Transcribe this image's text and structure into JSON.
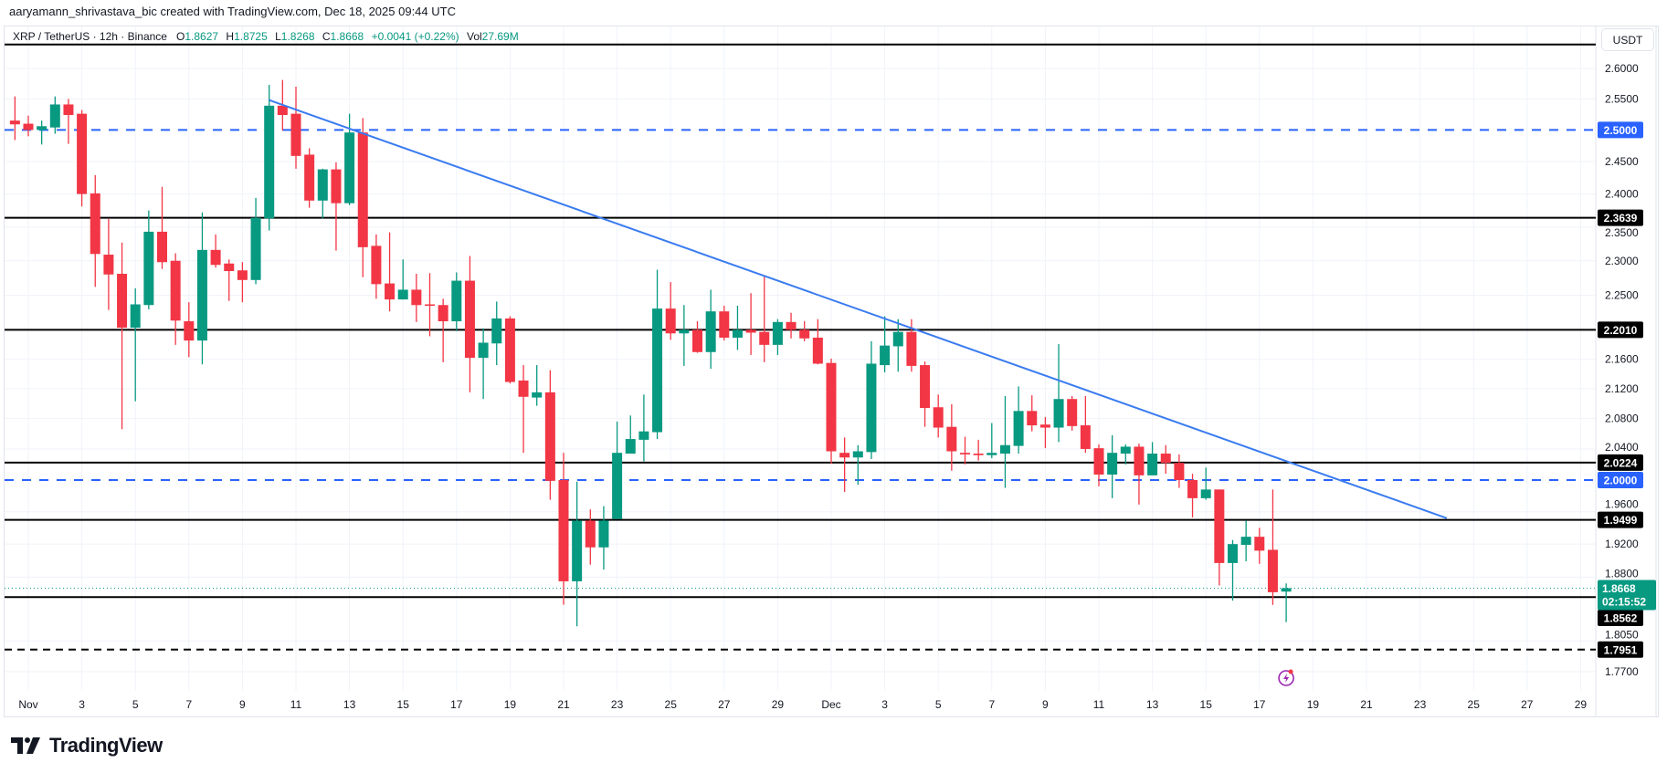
{
  "credit": "aaryamann_shrivastava_bic created with TradingView.com, Dec 18, 2025 09:44 UTC",
  "legend": {
    "symbol": "XRP / TetherUS · 12h · Binance",
    "o_label": "O",
    "o": "1.8627",
    "h_label": "H",
    "h": "1.8725",
    "l_label": "L",
    "l": "1.8268",
    "c_label": "C",
    "c": "1.8668",
    "change": "+0.0041 (+0.22%)",
    "vol_label": "Vol",
    "vol": "27.69M"
  },
  "currency_button": "USDT",
  "logo": "TradingView",
  "colors": {
    "up": "#089981",
    "down": "#F23645",
    "blue": "#2962FF",
    "trendline": "#3A7BF0",
    "level": "#000000"
  },
  "chart_data": {
    "type": "candlestick",
    "interval": "12h",
    "y_scale": "log",
    "ylim": [
      1.75,
      2.66
    ],
    "grid": true,
    "y_ticks": [
      "2.6000",
      "2.5500",
      "2.4500",
      "2.4000",
      "2.3500",
      "2.3000",
      "2.2500",
      "2.1600",
      "2.1200",
      "2.0800",
      "2.0400",
      "1.9600",
      "1.9200",
      "1.8800",
      "1.8050",
      "1.7700"
    ],
    "x_ticks": [
      {
        "label": "Nov",
        "date": "2025-11-01"
      },
      {
        "label": "3",
        "date": "2025-11-03"
      },
      {
        "label": "5",
        "date": "2025-11-05"
      },
      {
        "label": "7",
        "date": "2025-11-07"
      },
      {
        "label": "9",
        "date": "2025-11-09"
      },
      {
        "label": "11",
        "date": "2025-11-11"
      },
      {
        "label": "13",
        "date": "2025-11-13"
      },
      {
        "label": "15",
        "date": "2025-11-15"
      },
      {
        "label": "17",
        "date": "2025-11-17"
      },
      {
        "label": "19",
        "date": "2025-11-19"
      },
      {
        "label": "21",
        "date": "2025-11-21"
      },
      {
        "label": "23",
        "date": "2025-11-23"
      },
      {
        "label": "25",
        "date": "2025-11-25"
      },
      {
        "label": "27",
        "date": "2025-11-27"
      },
      {
        "label": "29",
        "date": "2025-11-29"
      },
      {
        "label": "Dec",
        "date": "2025-12-01"
      },
      {
        "label": "3",
        "date": "2025-12-03"
      },
      {
        "label": "5",
        "date": "2025-12-05"
      },
      {
        "label": "7",
        "date": "2025-12-07"
      },
      {
        "label": "9",
        "date": "2025-12-09"
      },
      {
        "label": "11",
        "date": "2025-12-11"
      },
      {
        "label": "13",
        "date": "2025-12-13"
      },
      {
        "label": "15",
        "date": "2025-12-15"
      },
      {
        "label": "17",
        "date": "2025-12-17"
      },
      {
        "label": "19",
        "date": "2025-12-19"
      },
      {
        "label": "21",
        "date": "2025-12-21"
      },
      {
        "label": "23",
        "date": "2025-12-23"
      },
      {
        "label": "25",
        "date": "2025-12-25"
      },
      {
        "label": "27",
        "date": "2025-12-27"
      },
      {
        "label": "29",
        "date": "2025-12-29"
      }
    ],
    "candles_fields": [
      "time",
      "open",
      "high",
      "low",
      "close"
    ],
    "candles": [
      [
        "2025-10-31 12:00",
        2.515,
        2.554,
        2.484,
        2.509
      ],
      [
        "2025-11-01 00:00",
        2.51,
        2.523,
        2.49,
        2.5
      ],
      [
        "2025-11-01 12:00",
        2.5,
        2.515,
        2.477,
        2.506
      ],
      [
        "2025-11-02 00:00",
        2.504,
        2.554,
        2.494,
        2.541
      ],
      [
        "2025-11-02 12:00",
        2.541,
        2.55,
        2.478,
        2.524
      ],
      [
        "2025-11-03 00:00",
        2.526,
        2.532,
        2.381,
        2.4
      ],
      [
        "2025-11-03 12:00",
        2.401,
        2.429,
        2.262,
        2.31
      ],
      [
        "2025-11-04 00:00",
        2.309,
        2.362,
        2.229,
        2.28
      ],
      [
        "2025-11-04 12:00",
        2.281,
        2.327,
        2.066,
        2.204
      ],
      [
        "2025-11-05 00:00",
        2.204,
        2.26,
        2.103,
        2.237
      ],
      [
        "2025-11-05 12:00",
        2.236,
        2.375,
        2.23,
        2.343
      ],
      [
        "2025-11-06 00:00",
        2.343,
        2.411,
        2.288,
        2.298
      ],
      [
        "2025-11-06 12:00",
        2.3,
        2.311,
        2.18,
        2.214
      ],
      [
        "2025-11-07 00:00",
        2.213,
        2.24,
        2.163,
        2.186
      ],
      [
        "2025-11-07 12:00",
        2.186,
        2.372,
        2.153,
        2.316
      ],
      [
        "2025-11-08 00:00",
        2.316,
        2.339,
        2.29,
        2.294
      ],
      [
        "2025-11-08 12:00",
        2.296,
        2.302,
        2.242,
        2.285
      ],
      [
        "2025-11-09 00:00",
        2.286,
        2.298,
        2.24,
        2.272
      ],
      [
        "2025-11-09 12:00",
        2.272,
        2.394,
        2.266,
        2.364
      ],
      [
        "2025-11-10 00:00",
        2.363,
        2.573,
        2.345,
        2.539
      ],
      [
        "2025-11-10 12:00",
        2.539,
        2.581,
        2.499,
        2.524
      ],
      [
        "2025-11-11 00:00",
        2.526,
        2.57,
        2.439,
        2.459
      ],
      [
        "2025-11-11 12:00",
        2.461,
        2.471,
        2.379,
        2.39
      ],
      [
        "2025-11-12 00:00",
        2.39,
        2.439,
        2.363,
        2.438
      ],
      [
        "2025-11-12 12:00",
        2.438,
        2.449,
        2.315,
        2.386
      ],
      [
        "2025-11-13 00:00",
        2.386,
        2.526,
        2.383,
        2.496
      ],
      [
        "2025-11-13 12:00",
        2.496,
        2.519,
        2.276,
        2.32
      ],
      [
        "2025-11-14 00:00",
        2.322,
        2.339,
        2.245,
        2.266
      ],
      [
        "2025-11-14 12:00",
        2.267,
        2.342,
        2.227,
        2.244
      ],
      [
        "2025-11-15 00:00",
        2.244,
        2.302,
        2.244,
        2.258
      ],
      [
        "2025-11-15 12:00",
        2.258,
        2.281,
        2.212,
        2.236
      ],
      [
        "2025-11-16 00:00",
        2.237,
        2.282,
        2.192,
        2.235
      ],
      [
        "2025-11-16 12:00",
        2.236,
        2.245,
        2.156,
        2.213
      ],
      [
        "2025-11-17 00:00",
        2.213,
        2.283,
        2.199,
        2.271
      ],
      [
        "2025-11-17 12:00",
        2.271,
        2.307,
        2.115,
        2.162
      ],
      [
        "2025-11-18 00:00",
        2.162,
        2.203,
        2.106,
        2.183
      ],
      [
        "2025-11-18 12:00",
        2.182,
        2.241,
        2.152,
        2.217
      ],
      [
        "2025-11-19 00:00",
        2.217,
        2.22,
        2.127,
        2.129
      ],
      [
        "2025-11-19 12:00",
        2.131,
        2.152,
        2.035,
        2.109
      ],
      [
        "2025-11-20 00:00",
        2.108,
        2.152,
        2.097,
        2.115
      ],
      [
        "2025-11-20 12:00",
        2.115,
        2.145,
        1.975,
        1.999
      ],
      [
        "2025-11-21 00:00",
        2.0,
        2.035,
        1.847,
        1.875
      ],
      [
        "2025-11-21 12:00",
        1.875,
        1.998,
        1.822,
        1.949
      ],
      [
        "2025-11-22 00:00",
        1.949,
        1.963,
        1.895,
        1.916
      ],
      [
        "2025-11-22 12:00",
        1.916,
        1.967,
        1.889,
        1.949
      ],
      [
        "2025-11-23 00:00",
        1.951,
        2.076,
        1.951,
        2.035
      ],
      [
        "2025-11-23 12:00",
        2.034,
        2.084,
        2.034,
        2.053
      ],
      [
        "2025-11-24 00:00",
        2.052,
        2.112,
        2.024,
        2.063
      ],
      [
        "2025-11-24 12:00",
        2.062,
        2.287,
        2.053,
        2.231
      ],
      [
        "2025-11-25 00:00",
        2.231,
        2.269,
        2.187,
        2.196
      ],
      [
        "2025-11-25 12:00",
        2.196,
        2.236,
        2.151,
        2.201
      ],
      [
        "2025-11-26 00:00",
        2.201,
        2.213,
        2.169,
        2.17
      ],
      [
        "2025-11-26 12:00",
        2.17,
        2.258,
        2.147,
        2.227
      ],
      [
        "2025-11-27 00:00",
        2.227,
        2.235,
        2.186,
        2.19
      ],
      [
        "2025-11-27 12:00",
        2.19,
        2.235,
        2.173,
        2.201
      ],
      [
        "2025-11-28 00:00",
        2.201,
        2.253,
        2.166,
        2.197
      ],
      [
        "2025-11-28 12:00",
        2.198,
        2.277,
        2.156,
        2.18
      ],
      [
        "2025-11-29 00:00",
        2.18,
        2.216,
        2.166,
        2.212
      ],
      [
        "2025-11-29 12:00",
        2.212,
        2.225,
        2.189,
        2.201
      ],
      [
        "2025-11-30 00:00",
        2.201,
        2.213,
        2.185,
        2.189
      ],
      [
        "2025-11-30 12:00",
        2.19,
        2.216,
        2.153,
        2.154
      ],
      [
        "2025-12-01 00:00",
        2.155,
        2.161,
        2.021,
        2.037
      ],
      [
        "2025-12-01 12:00",
        2.035,
        2.055,
        1.985,
        2.029
      ],
      [
        "2025-12-02 00:00",
        2.029,
        2.045,
        1.994,
        2.037
      ],
      [
        "2025-12-02 12:00",
        2.036,
        2.185,
        2.027,
        2.154
      ],
      [
        "2025-12-03 00:00",
        2.152,
        2.22,
        2.142,
        2.179
      ],
      [
        "2025-12-03 12:00",
        2.178,
        2.216,
        2.143,
        2.198
      ],
      [
        "2025-12-04 00:00",
        2.198,
        2.216,
        2.143,
        2.151
      ],
      [
        "2025-12-04 12:00",
        2.152,
        2.157,
        2.069,
        2.094
      ],
      [
        "2025-12-05 00:00",
        2.095,
        2.112,
        2.055,
        2.068
      ],
      [
        "2025-12-05 12:00",
        2.069,
        2.099,
        2.012,
        2.037
      ],
      [
        "2025-12-06 00:00",
        2.035,
        2.056,
        2.02,
        2.033
      ],
      [
        "2025-12-06 12:00",
        2.034,
        2.052,
        2.025,
        2.032
      ],
      [
        "2025-12-07 00:00",
        2.032,
        2.074,
        2.028,
        2.035
      ],
      [
        "2025-12-07 12:00",
        2.034,
        2.11,
        1.99,
        2.045
      ],
      [
        "2025-12-08 00:00",
        2.044,
        2.123,
        2.034,
        2.09
      ],
      [
        "2025-12-08 12:00",
        2.09,
        2.111,
        2.063,
        2.071
      ],
      [
        "2025-12-09 00:00",
        2.072,
        2.082,
        2.041,
        2.068
      ],
      [
        "2025-12-09 12:00",
        2.068,
        2.181,
        2.049,
        2.106
      ],
      [
        "2025-12-10 00:00",
        2.106,
        2.11,
        2.064,
        2.07
      ],
      [
        "2025-12-10 12:00",
        2.071,
        2.11,
        2.035,
        2.04
      ],
      [
        "2025-12-11 00:00",
        2.041,
        2.046,
        1.992,
        2.007
      ],
      [
        "2025-12-11 12:00",
        2.007,
        2.058,
        1.977,
        2.035
      ],
      [
        "2025-12-12 00:00",
        2.034,
        2.046,
        2.02,
        2.043
      ],
      [
        "2025-12-12 12:00",
        2.043,
        2.047,
        1.969,
        2.006
      ],
      [
        "2025-12-13 00:00",
        2.006,
        2.049,
        2.006,
        2.034
      ],
      [
        "2025-12-13 12:00",
        2.034,
        2.045,
        2.008,
        2.022
      ],
      [
        "2025-12-14 00:00",
        2.022,
        2.033,
        1.99,
        2.0
      ],
      [
        "2025-12-14 12:00",
        2.0,
        2.008,
        1.953,
        1.977
      ],
      [
        "2025-12-15 00:00",
        1.977,
        2.016,
        1.975,
        1.988
      ],
      [
        "2025-12-15 12:00",
        1.988,
        1.988,
        1.87,
        1.897
      ],
      [
        "2025-12-16 00:00",
        1.897,
        1.925,
        1.852,
        1.92
      ],
      [
        "2025-12-16 12:00",
        1.919,
        1.949,
        1.899,
        1.929
      ],
      [
        "2025-12-17 00:00",
        1.929,
        1.94,
        1.896,
        1.912
      ],
      [
        "2025-12-17 12:00",
        1.913,
        1.988,
        1.847,
        1.862
      ],
      [
        "2025-12-18 00:00",
        1.8627,
        1.8725,
        1.8268,
        1.8668
      ]
    ],
    "levels": [
      {
        "price": 2.64,
        "label": "",
        "style": "solid",
        "color": "#000000"
      },
      {
        "price": 2.5,
        "label": "2.5000",
        "style": "dashed",
        "color": "#2962FF"
      },
      {
        "price": 2.3639,
        "label": "2.3639",
        "style": "solid",
        "color": "#000000"
      },
      {
        "price": 2.201,
        "label": "2.2010",
        "style": "solid",
        "color": "#000000"
      },
      {
        "price": 2.0224,
        "label": "2.0224",
        "style": "solid",
        "color": "#000000"
      },
      {
        "price": 2.0,
        "label": "2.0000",
        "style": "dashed",
        "color": "#2962FF"
      },
      {
        "price": 1.9499,
        "label": "1.9499",
        "style": "solid",
        "color": "#000000"
      },
      {
        "price": 1.8562,
        "label": "1.8562",
        "style": "solid",
        "color": "#000000"
      },
      {
        "price": 1.7951,
        "label": "1.7951",
        "style": "dashed",
        "color": "#000000"
      }
    ],
    "trendline": {
      "start": {
        "time": "2025-11-10 00:00",
        "price": 2.548
      },
      "end": {
        "time": "2025-12-24 00:00",
        "price": 1.952
      }
    },
    "last_price": {
      "price": 1.8668,
      "label": "1.8668",
      "countdown": "02:15:52"
    },
    "event_marker": {
      "time": "2025-12-18 00:00",
      "icon": "lightning-event-icon",
      "color": "#9C27B0"
    }
  }
}
